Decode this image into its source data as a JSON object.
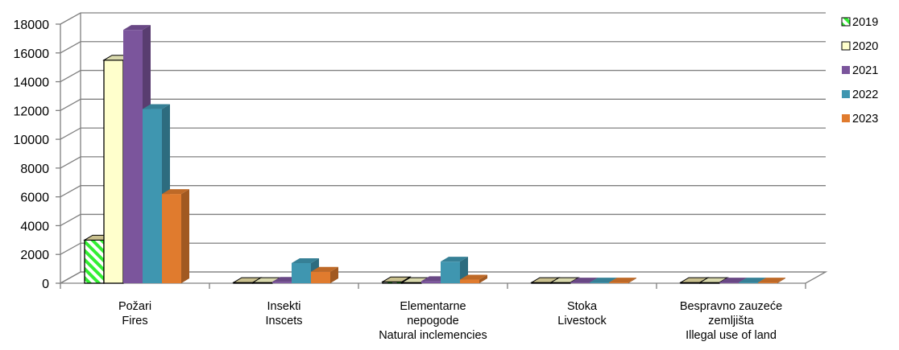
{
  "chart_data": {
    "type": "bar",
    "title": "",
    "xlabel": "",
    "ylabel": "",
    "ylim": [
      0,
      18000
    ],
    "yticks": [
      0,
      2000,
      4000,
      6000,
      8000,
      10000,
      12000,
      14000,
      16000,
      18000
    ],
    "grid": true,
    "legend_position": "right",
    "categories": [
      [
        "Požari",
        "Fires"
      ],
      [
        "Insekti",
        "Inscets"
      ],
      [
        "Elementarne",
        "nepogode",
        "Natural inclemencies"
      ],
      [
        "Stoka",
        "Livestock"
      ],
      [
        "Bespravno zauzeće",
        "zemljišta",
        "Illegal use of land"
      ]
    ],
    "series": [
      {
        "name": "2019",
        "values": [
          3000,
          50,
          100,
          50,
          50
        ],
        "color": "#33ee33",
        "pattern": "green-hatch"
      },
      {
        "name": "2020",
        "values": [
          15500,
          50,
          50,
          50,
          50
        ],
        "color": "#ffffcc"
      },
      {
        "name": "2021",
        "values": [
          17600,
          100,
          150,
          50,
          50
        ],
        "color": "#7b559c"
      },
      {
        "name": "2022",
        "values": [
          12100,
          1400,
          1500,
          50,
          50
        ],
        "color": "#3f96b0"
      },
      {
        "name": "2023",
        "values": [
          6200,
          800,
          250,
          50,
          50
        ],
        "color": "#e07b2e"
      }
    ]
  }
}
